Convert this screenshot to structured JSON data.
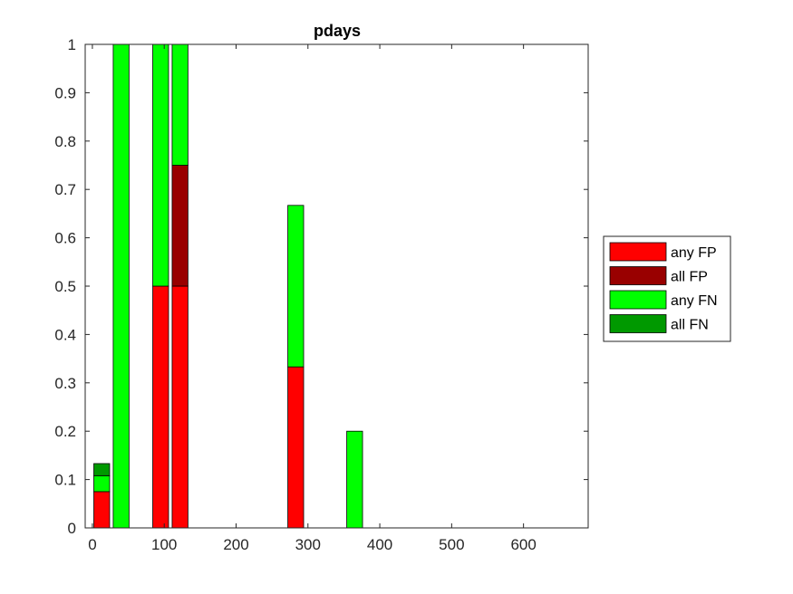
{
  "chart_data": {
    "type": "bar",
    "stacked": true,
    "title": "pdays",
    "xlabel": "",
    "ylabel": "",
    "xlim": [
      -10,
      690
    ],
    "ylim": [
      0,
      1
    ],
    "xticks": [
      0,
      100,
      200,
      300,
      400,
      500,
      600
    ],
    "xtick_labels": [
      "0",
      "100",
      "200",
      "300",
      "400",
      "500",
      "600"
    ],
    "yticks": [
      0,
      0.1,
      0.2,
      0.3,
      0.4,
      0.5,
      0.6,
      0.7,
      0.8,
      0.9,
      1
    ],
    "ytick_labels": [
      "0",
      "0.1",
      "0.2",
      "0.3",
      "0.4",
      "0.5",
      "0.6",
      "0.7",
      "0.8",
      "0.9",
      "1"
    ],
    "bar_width": 22,
    "grid": false,
    "legend_position": "outside-right",
    "categories": [
      13,
      40,
      95,
      122,
      283,
      365
    ],
    "series": [
      {
        "name": "any FP",
        "color": "#ff0000",
        "values": [
          0.075,
          0,
          0.5,
          0.5,
          0.333,
          0
        ]
      },
      {
        "name": "all FP",
        "color": "#990000",
        "values": [
          0,
          0,
          0,
          0.25,
          0,
          0
        ]
      },
      {
        "name": "any FN",
        "color": "#00ff00",
        "values": [
          0.033,
          1,
          0.5,
          0.25,
          0.334,
          0.2
        ]
      },
      {
        "name": "all FN",
        "color": "#009900",
        "values": [
          0.025,
          0,
          0,
          0,
          0,
          0
        ]
      }
    ]
  }
}
